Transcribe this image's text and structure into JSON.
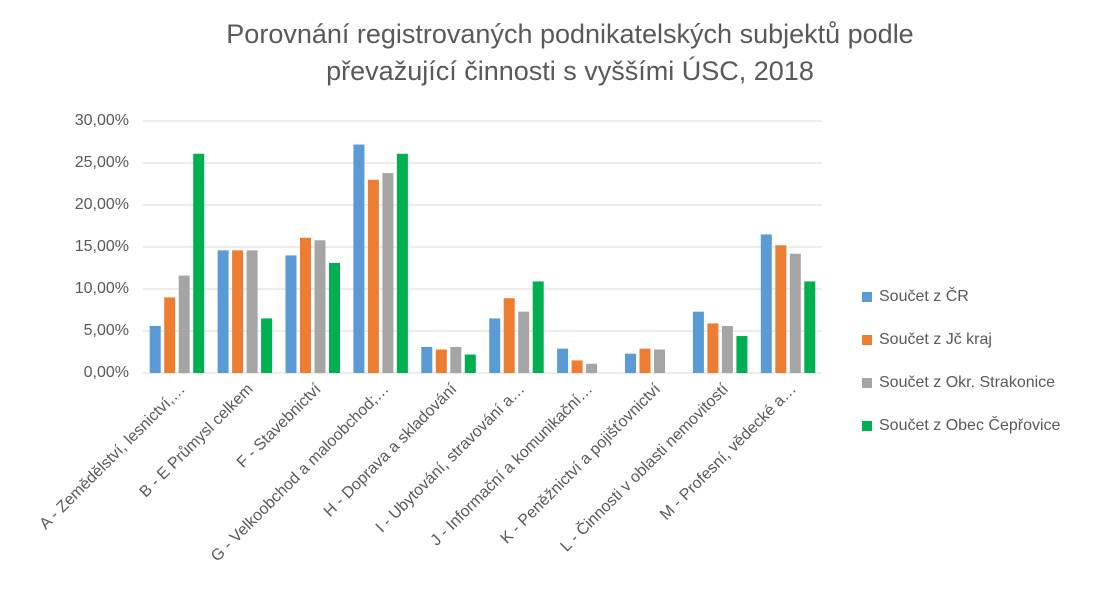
{
  "chart_data": {
    "type": "bar",
    "title": [
      "Porovnání registrovaných podnikatelských subjektů podle",
      "převažující činnosti s vyššími ÚSC, 2018"
    ],
    "categories": [
      "A - Zemědělství, lesnictví,…",
      "B - E Průmysl celkem",
      "F - Stavebnictví",
      "G - Velkoobchod a maloobchod;…",
      "H - Doprava a skladování",
      "I - Ubytování, stravování a…",
      "J - Informační a komunikační…",
      "K - Peněžnictví a pojišťovnictví",
      "L - Činnosti v oblasti nemovitostí",
      "M - Profesní, vědecké a…"
    ],
    "series": [
      {
        "name": "Součet z ČR",
        "color": "#5b9bd5",
        "values": [
          5.6,
          14.6,
          14.0,
          27.2,
          3.1,
          6.5,
          2.9,
          2.3,
          7.3,
          16.5
        ]
      },
      {
        "name": "Součet z Jč kraj",
        "color": "#ed7d31",
        "values": [
          9.0,
          14.6,
          16.1,
          23.0,
          2.8,
          8.9,
          1.5,
          2.9,
          5.9,
          15.2
        ]
      },
      {
        "name": "Součet z Okr. Strakonice",
        "color": "#a5a5a5",
        "values": [
          11.6,
          14.6,
          15.8,
          23.8,
          3.1,
          7.3,
          1.1,
          2.8,
          5.6,
          14.2
        ]
      },
      {
        "name": "Součet z Obec Čepřovice",
        "color": "#00b050",
        "values": [
          26.1,
          6.5,
          13.1,
          26.1,
          2.2,
          10.9,
          0,
          0,
          4.4,
          10.9
        ]
      }
    ],
    "ylim": [
      0,
      30
    ],
    "yticks": [
      {
        "value": 0,
        "label": "0,00%"
      },
      {
        "value": 5,
        "label": "5,00%"
      },
      {
        "value": 10,
        "label": "10,00%"
      },
      {
        "value": 15,
        "label": "15,00%"
      },
      {
        "value": 20,
        "label": "20,00%"
      },
      {
        "value": 25,
        "label": "25,00%"
      },
      {
        "value": 30,
        "label": "30,00%"
      }
    ],
    "grid": true,
    "legend": "right"
  }
}
